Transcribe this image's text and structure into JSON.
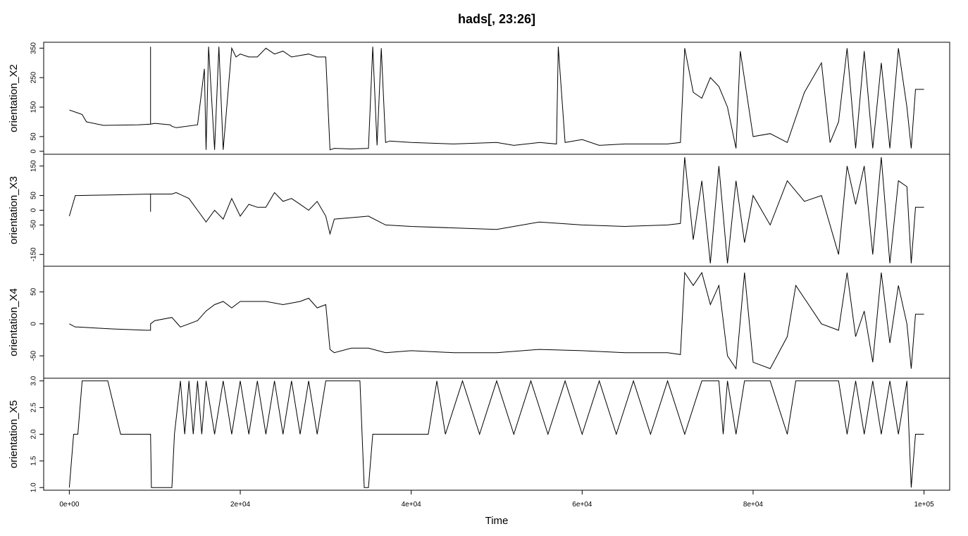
{
  "chart_data": {
    "type": "line",
    "title": "hads[, 23:26]",
    "xlabel": "Time",
    "xlim": [
      -3000,
      103000
    ],
    "x_ticks": [
      0,
      20000,
      40000,
      60000,
      80000,
      100000
    ],
    "x_tick_labels": [
      "0e+00",
      "2e+04",
      "4e+04",
      "6e+04",
      "8e+04",
      "1e+05"
    ],
    "panels": [
      {
        "name": "orientation_X2",
        "ylabel": "orientation_X2",
        "ylim": [
          -10,
          370
        ],
        "y_ticks": [
          0,
          50,
          150,
          250,
          350
        ],
        "y_tick_labels": [
          "0",
          "50",
          "150",
          "250",
          "350"
        ],
        "x": [
          0,
          1000,
          1500,
          2000,
          4000,
          8000,
          9500,
          9500,
          9500,
          10000,
          11800,
          12000,
          12500,
          15000,
          15800,
          16000,
          16300,
          17000,
          17500,
          18000,
          19000,
          19500,
          20000,
          21000,
          22000,
          23000,
          24000,
          25000,
          26000,
          27000,
          28000,
          29000,
          30000,
          30500,
          31000,
          33000,
          35000,
          35500,
          36000,
          36500,
          37000,
          37500,
          40000,
          45000,
          50000,
          52000,
          55000,
          57000,
          57200,
          58000,
          60000,
          62000,
          65000,
          70000,
          71500,
          72000,
          73000,
          74000,
          75000,
          76000,
          77000,
          78000,
          78500,
          80000,
          82000,
          84000,
          86000,
          88000,
          89000,
          90000,
          91000,
          92000,
          93000,
          94000,
          95000,
          96000,
          97000,
          98000,
          98500,
          99000,
          100000
        ],
        "y": [
          140,
          130,
          125,
          100,
          88,
          90,
          92,
          355,
          92,
          95,
          90,
          85,
          80,
          90,
          280,
          5,
          355,
          5,
          355,
          5,
          350,
          320,
          330,
          320,
          320,
          350,
          330,
          340,
          320,
          325,
          330,
          320,
          320,
          5,
          10,
          8,
          10,
          355,
          20,
          350,
          30,
          35,
          30,
          25,
          30,
          20,
          30,
          25,
          355,
          30,
          40,
          20,
          25,
          25,
          30,
          350,
          200,
          180,
          250,
          220,
          150,
          10,
          340,
          50,
          60,
          30,
          200,
          300,
          30,
          100,
          350,
          10,
          340,
          10,
          300,
          10,
          350,
          150,
          10,
          210,
          210
        ]
      },
      {
        "name": "orientation_X3",
        "ylabel": "orientation_X3",
        "ylim": [
          -190,
          190
        ],
        "y_ticks": [
          -150,
          -50,
          0,
          50,
          150
        ],
        "y_tick_labels": [
          "-150",
          "-50",
          "0",
          "50",
          "150"
        ],
        "x": [
          0,
          700,
          1000,
          5000,
          9500,
          9500,
          9500,
          12000,
          12500,
          14000,
          15000,
          16000,
          17000,
          18000,
          19000,
          20000,
          21000,
          22000,
          23000,
          24000,
          25000,
          26000,
          27000,
          28000,
          29000,
          30000,
          30500,
          31000,
          33000,
          35000,
          37000,
          40000,
          45000,
          50000,
          52000,
          55000,
          60000,
          65000,
          70000,
          71500,
          72000,
          73000,
          74000,
          75000,
          76000,
          77000,
          78000,
          79000,
          80000,
          82000,
          84000,
          86000,
          88000,
          90000,
          91000,
          92000,
          93000,
          94000,
          95000,
          96000,
          97000,
          98000,
          98500,
          99000,
          100000
        ],
        "y": [
          -20,
          50,
          50,
          52,
          55,
          -5,
          55,
          55,
          60,
          40,
          0,
          -40,
          0,
          -30,
          40,
          -20,
          20,
          10,
          10,
          60,
          30,
          40,
          20,
          0,
          30,
          -20,
          -80,
          -30,
          -25,
          -20,
          -50,
          -55,
          -60,
          -65,
          -55,
          -40,
          -50,
          -55,
          -50,
          -45,
          180,
          -100,
          100,
          -180,
          150,
          -180,
          100,
          -110,
          50,
          -50,
          100,
          30,
          50,
          -150,
          150,
          20,
          150,
          -150,
          180,
          -180,
          100,
          80,
          -180,
          10,
          10
        ]
      },
      {
        "name": "orientation_X4",
        "ylabel": "orientation_X4",
        "ylim": [
          -85,
          90
        ],
        "y_ticks": [
          -50,
          0,
          50
        ],
        "y_tick_labels": [
          "-50",
          "0",
          "50"
        ],
        "x": [
          0,
          700,
          1000,
          5000,
          9000,
          9500,
          9500,
          10000,
          12000,
          13000,
          15000,
          16000,
          17000,
          18000,
          19000,
          20000,
          23000,
          25000,
          27000,
          28000,
          29000,
          30000,
          30500,
          31000,
          33000,
          35000,
          37000,
          40000,
          45000,
          50000,
          55000,
          60000,
          65000,
          70000,
          71500,
          72000,
          73000,
          74000,
          75000,
          76000,
          77000,
          78000,
          79000,
          80000,
          82000,
          84000,
          85000,
          88000,
          90000,
          91000,
          92000,
          93000,
          94000,
          95000,
          96000,
          97000,
          98000,
          98500,
          99000,
          100000
        ],
        "y": [
          0,
          -5,
          -5,
          -8,
          -10,
          -10,
          0,
          5,
          10,
          -5,
          5,
          20,
          30,
          35,
          25,
          35,
          35,
          30,
          35,
          40,
          25,
          30,
          -40,
          -45,
          -38,
          -38,
          -45,
          -42,
          -45,
          -45,
          -40,
          -42,
          -45,
          -45,
          -48,
          80,
          60,
          80,
          30,
          60,
          -50,
          -70,
          80,
          -60,
          -70,
          -20,
          60,
          0,
          -10,
          80,
          -20,
          20,
          -60,
          80,
          -30,
          60,
          0,
          -70,
          15,
          15
        ]
      },
      {
        "name": "orientation_X5",
        "ylabel": "orientation_X5",
        "ylim": [
          0.95,
          3.05
        ],
        "y_ticks": [
          1.0,
          1.5,
          2.0,
          2.5,
          3.0
        ],
        "y_tick_labels": [
          "1.0",
          "1.5",
          "2.0",
          "2.5",
          "3.0"
        ],
        "x": [
          0,
          500,
          1000,
          1500,
          4500,
          6000,
          9500,
          9600,
          12000,
          12300,
          13000,
          13500,
          14000,
          14500,
          15000,
          15500,
          16000,
          17000,
          18000,
          19000,
          20000,
          21000,
          22000,
          23000,
          24000,
          25000,
          26000,
          27000,
          28000,
          29000,
          30000,
          31000,
          32000,
          34000,
          34500,
          35000,
          35500,
          36000,
          38000,
          40000,
          42000,
          43000,
          44000,
          46000,
          48000,
          50000,
          52000,
          54000,
          56000,
          58000,
          60000,
          62000,
          64000,
          66000,
          68000,
          70000,
          72000,
          74000,
          76000,
          76500,
          77000,
          78000,
          79000,
          80000,
          82000,
          84000,
          85000,
          86000,
          88000,
          90000,
          91000,
          92000,
          93000,
          94000,
          95000,
          96000,
          97000,
          98000,
          98500,
          99000,
          100000
        ],
        "y": [
          1.0,
          2.0,
          2.0,
          3.0,
          3.0,
          2.0,
          2.0,
          1.0,
          1.0,
          2.0,
          3.0,
          2.0,
          3.0,
          2.0,
          3.0,
          2.0,
          3.0,
          2.0,
          3.0,
          2.0,
          3.0,
          2.0,
          3.0,
          2.0,
          3.0,
          2.0,
          3.0,
          2.0,
          3.0,
          2.0,
          3.0,
          3.0,
          3.0,
          3.0,
          1.0,
          1.0,
          2.0,
          2.0,
          2.0,
          2.0,
          2.0,
          3.0,
          2.0,
          3.0,
          2.0,
          3.0,
          2.0,
          3.0,
          2.0,
          3.0,
          2.0,
          3.0,
          2.0,
          3.0,
          2.0,
          3.0,
          2.0,
          3.0,
          3.0,
          2.0,
          3.0,
          2.0,
          3.0,
          3.0,
          3.0,
          2.0,
          3.0,
          3.0,
          3.0,
          3.0,
          2.0,
          3.0,
          2.0,
          3.0,
          2.0,
          3.0,
          2.0,
          3.0,
          1.0,
          2.0,
          2.0
        ]
      }
    ]
  }
}
